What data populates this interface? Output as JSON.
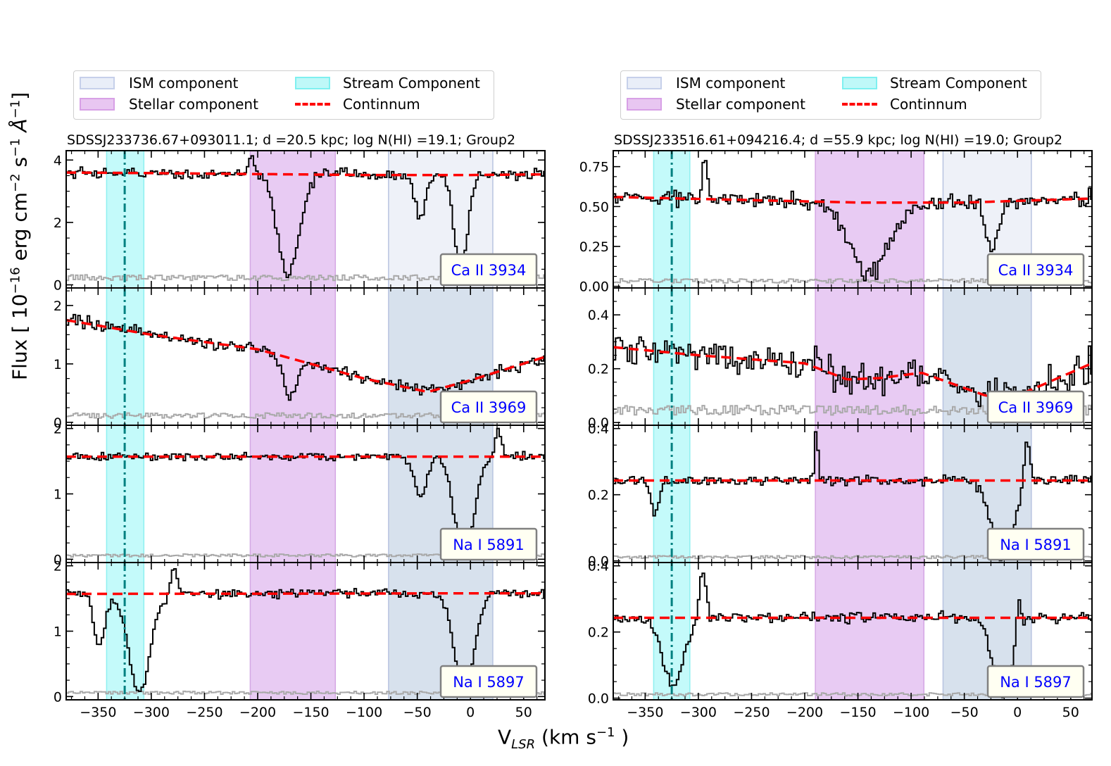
{
  "figure": {
    "ylabel_main": "Flux [ 10",
    "ylabel_exp1": "−16",
    "ylabel_mid": " erg cm",
    "ylabel_exp2": "−2",
    "ylabel_mid2": " s",
    "ylabel_exp3": "−1",
    "ylabel_unit": " Å",
    "ylabel_exp4": "−1",
    "ylabel_end": "]",
    "xlabel_main": "V",
    "xlabel_sub": "LSR",
    "xlabel_unit": "  (km s",
    "xlabel_exp": "−1",
    "xlabel_end": " )"
  },
  "legend": {
    "ism": "ISM component",
    "stellar": "Stellar component",
    "stream": "Stream Component",
    "continuum": "Continnum"
  },
  "colors": {
    "ism": "#c9d4ea",
    "stellar": "#d9a5e8",
    "stream": "#7ff5f5",
    "continuum": "#ff0000",
    "flux": "#000000",
    "error": "#a9a9a9",
    "label_text": "#0000ff",
    "stream_line": "#008080"
  },
  "chart_data": [
    {
      "type": "line",
      "title": "SDSSJ233736.67+093011.1; d =20.5 kpc; log N(HI) =19.1; Group2",
      "xlim": [
        -380,
        70
      ],
      "xticks": [
        -350,
        -300,
        -250,
        -200,
        -150,
        -100,
        -50,
        0,
        50
      ],
      "xtick_labels": [
        "−350",
        "−300",
        "−250",
        "−200",
        "−150",
        "−100",
        "−50",
        "0",
        "50"
      ],
      "stream_center": -325,
      "stream_range": [
        -342,
        -307
      ],
      "stellar_range": [
        -207,
        -127
      ],
      "ism_range": [
        -77,
        21
      ],
      "panels": [
        {
          "label": "Ca II 3934",
          "ylim": [
            -0.1,
            4.3
          ],
          "yticks": [
            0,
            2,
            4
          ],
          "ytick_labels": [
            "0",
            "2",
            "4"
          ],
          "continuum": [
            [
              -380,
              3.6
            ],
            [
              -300,
              3.58
            ],
            [
              -200,
              3.55
            ],
            [
              -100,
              3.52
            ],
            [
              0,
              3.52
            ],
            [
              70,
              3.54
            ]
          ],
          "noise": 0.18,
          "error": 0.2,
          "absorptions": [
            {
              "v": -172,
              "depth": 3.2,
              "width": 10
            },
            {
              "v": -48,
              "depth": 1.4,
              "width": 5
            },
            {
              "v": -10,
              "depth": 3.2,
              "width": 6
            }
          ],
          "emissions": [
            {
              "v": -207,
              "height": 0.6,
              "width": 3
            }
          ]
        },
        {
          "label": "Ca II 3969",
          "ylim": [
            -0.05,
            2.3
          ],
          "yticks": [
            0,
            1,
            2
          ],
          "ytick_labels": [
            "0",
            "1",
            "2"
          ],
          "continuum": [
            [
              -380,
              1.75
            ],
            [
              -300,
              1.5
            ],
            [
              -200,
              1.25
            ],
            [
              -150,
              1.0
            ],
            [
              -100,
              0.75
            ],
            [
              -40,
              0.52
            ],
            [
              0,
              0.72
            ],
            [
              70,
              1.12
            ]
          ],
          "noise": 0.1,
          "error": 0.1,
          "absorptions": [
            {
              "v": -170,
              "depth": 0.7,
              "width": 6
            }
          ],
          "emissions": []
        },
        {
          "label": "Na I 5891",
          "ylim": [
            -0.05,
            2.05
          ],
          "yticks": [
            0,
            1,
            2
          ],
          "ytick_labels": [
            "0",
            "1",
            "2"
          ],
          "continuum": [
            [
              -380,
              1.57
            ],
            [
              70,
              1.57
            ]
          ],
          "noise": 0.06,
          "error": 0.05,
          "absorptions": [
            {
              "v": -48,
              "depth": 0.6,
              "width": 6
            },
            {
              "v": -7,
              "depth": 1.5,
              "width": 9
            }
          ],
          "emissions": [
            {
              "v": 25,
              "height": 0.4,
              "width": 3
            }
          ]
        },
        {
          "label": "Na I 5897",
          "ylim": [
            -0.05,
            2.05
          ],
          "yticks": [
            0,
            1,
            2
          ],
          "ytick_labels": [
            "0",
            "1",
            "2"
          ],
          "continuum": [
            [
              -380,
              1.57
            ],
            [
              70,
              1.58
            ]
          ],
          "noise": 0.07,
          "error": 0.05,
          "absorptions": [
            {
              "v": -350,
              "depth": 0.8,
              "width": 5
            },
            {
              "v": -312,
              "depth": 1.5,
              "width": 10
            },
            {
              "v": -7,
              "depth": 1.5,
              "width": 9
            }
          ],
          "emissions": [
            {
              "v": -280,
              "height": 0.4,
              "width": 3
            }
          ]
        }
      ]
    },
    {
      "type": "line",
      "title": "SDSSJ233516.61+094216.4; d =55.9 kpc; log N(HI) =19.0; Group2",
      "xlim": [
        -380,
        70
      ],
      "xticks": [
        -350,
        -300,
        -250,
        -200,
        -150,
        -100,
        -50,
        0,
        50
      ],
      "xtick_labels": [
        "−350",
        "−300",
        "−250",
        "−200",
        "−150",
        "−100",
        "−50",
        "0",
        "50"
      ],
      "stream_center": -325,
      "stream_range": [
        -342,
        -308
      ],
      "stellar_range": [
        -190,
        -88
      ],
      "ism_range": [
        -70,
        13
      ],
      "panels": [
        {
          "label": "Ca II 3934",
          "ylim": [
            -0.01,
            0.85
          ],
          "yticks": [
            0,
            0.25,
            0.5,
            0.75
          ],
          "ytick_labels": [
            "0.00",
            "0.25",
            "0.50",
            "0.75"
          ],
          "continuum": [
            [
              -380,
              0.56
            ],
            [
              -250,
              0.54
            ],
            [
              -150,
              0.525
            ],
            [
              -50,
              0.525
            ],
            [
              70,
              0.55
            ]
          ],
          "noise": 0.05,
          "error": 0.03,
          "absorptions": [
            {
              "v": -140,
              "depth": 0.45,
              "width": 18
            },
            {
              "v": -25,
              "depth": 0.3,
              "width": 6
            }
          ],
          "emissions": [
            {
              "v": -295,
              "height": 0.3,
              "width": 2
            }
          ]
        },
        {
          "label": "Ca II 3969",
          "ylim": [
            -0.01,
            0.5
          ],
          "yticks": [
            0,
            0.2,
            0.4
          ],
          "ytick_labels": [
            "0.0",
            "0.2",
            "0.4"
          ],
          "continuum": [
            [
              -380,
              0.28
            ],
            [
              -300,
              0.25
            ],
            [
              -200,
              0.22
            ],
            [
              -160,
              0.16
            ],
            [
              -130,
              0.165
            ],
            [
              -90,
              0.185
            ],
            [
              -30,
              0.1
            ],
            [
              0,
              0.1
            ],
            [
              70,
              0.22
            ]
          ],
          "noise": 0.06,
          "error": 0.04,
          "absorptions": [],
          "emissions": []
        },
        {
          "label": "Na I 5891",
          "ylim": [
            -0.005,
            0.41
          ],
          "yticks": [
            0,
            0.2,
            0.4
          ],
          "ytick_labels": [
            "0.0",
            "0.2",
            "0.4"
          ],
          "continuum": [
            [
              -380,
              0.243
            ],
            [
              70,
              0.243
            ]
          ],
          "noise": 0.015,
          "error": 0.01,
          "absorptions": [
            {
              "v": -342,
              "depth": 0.1,
              "width": 4
            },
            {
              "v": -15,
              "depth": 0.24,
              "width": 10
            }
          ],
          "emissions": [
            {
              "v": -190,
              "height": 0.16,
              "width": 1.5
            },
            {
              "v": 8,
              "height": 0.14,
              "width": 3
            }
          ]
        },
        {
          "label": "Na I 5897",
          "ylim": [
            -0.005,
            0.41
          ],
          "yticks": [
            0,
            0.2,
            0.4
          ],
          "ytick_labels": [
            "0.0",
            "0.2",
            "0.4"
          ],
          "continuum": [
            [
              -380,
              0.243
            ],
            [
              70,
              0.243
            ]
          ],
          "noise": 0.015,
          "error": 0.01,
          "absorptions": [
            {
              "v": -325,
              "depth": 0.2,
              "width": 10
            },
            {
              "v": -15,
              "depth": 0.24,
              "width": 9
            }
          ],
          "emissions": [
            {
              "v": -297,
              "height": 0.14,
              "width": 3
            },
            {
              "v": 0,
              "height": 0.12,
              "width": 2
            }
          ]
        }
      ]
    }
  ]
}
